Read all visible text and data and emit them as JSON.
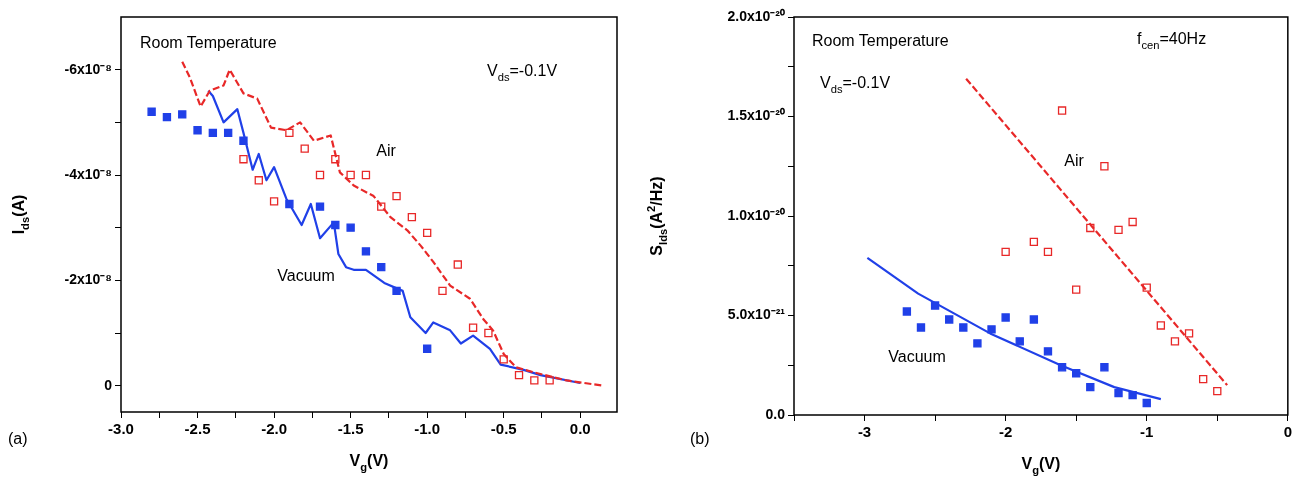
{
  "chart_data": [
    {
      "type": "scatter",
      "xlabel": "V$_{g}$(V)",
      "ylabel": "I$_{ds}$(A)",
      "xlim": [
        -3.0,
        0.24
      ],
      "ylim": [
        5e-09,
        -7e-08
      ],
      "xticks": [
        {
          "value": -3,
          "label": "-3.0"
        },
        {
          "value": -2.75,
          "label": null
        },
        {
          "value": -2.5,
          "label": "-2.5"
        },
        {
          "value": -2.25,
          "label": null
        },
        {
          "value": -2,
          "label": "-2.0"
        },
        {
          "value": -1.75,
          "label": null
        },
        {
          "value": -1.5,
          "label": "-1.5"
        },
        {
          "value": -1.25,
          "label": null
        },
        {
          "value": -1,
          "label": "-1.0"
        },
        {
          "value": -0.75,
          "label": null
        },
        {
          "value": -0.5,
          "label": "-0.5"
        },
        {
          "value": -0.25,
          "label": null
        },
        {
          "value": 0,
          "label": "0.0"
        }
      ],
      "yticks": [
        {
          "value": -6e-08,
          "label": "-6x10⁻⁸"
        },
        {
          "value": -5e-08,
          "label": null
        },
        {
          "value": -4e-08,
          "label": "-4x10⁻⁸"
        },
        {
          "value": -3e-08,
          "label": null
        },
        {
          "value": -2e-08,
          "label": "-2x10⁻⁸"
        },
        {
          "value": -1e-08,
          "label": null
        },
        0
      ],
      "grid": false,
      "legend": false,
      "annotations": [
        "Room Temperature",
        "V$_{ds}$=-0.1V",
        "Air",
        "Vacuum",
        "(a)"
      ],
      "series": [
        {
          "type": "scatter",
          "marker": "square",
          "color": "#e82828",
          "x": [
            -2.2,
            -2.1,
            -2.0,
            -1.9,
            -1.8,
            -1.7,
            -1.6,
            -1.5,
            -1.4,
            -1.3,
            -1.2,
            -1.1,
            -1.0,
            -0.9,
            -0.8,
            -0.7,
            -0.6,
            -0.5,
            -0.4,
            -0.3,
            -0.2
          ],
          "values": [
            -4.3e-08,
            -3.9e-08,
            -3.5e-08,
            -4.8e-08,
            -4.5e-08,
            -4e-08,
            -4.3e-08,
            -4e-08,
            -4e-08,
            -3.4e-08,
            -3.6e-08,
            -3.2e-08,
            -2.9e-08,
            -1.8e-08,
            -2.3e-08,
            -1.1e-08,
            -1e-08,
            -5e-09,
            -2e-09,
            -1e-09,
            -1e-09
          ]
        },
        {
          "type": "scatter",
          "marker": "square",
          "color": "#2040e8",
          "x": [
            -2.8,
            -2.7,
            -2.6,
            -2.5,
            -2.4,
            -2.3,
            -2.2,
            -1.9,
            -1.7,
            -1.6,
            -1.5,
            -1.4,
            -1.3,
            -1.2,
            -1.0
          ],
          "values": [
            -5.2e-08,
            -5.1e-08,
            -5.15e-08,
            -4.85e-08,
            -4.8e-08,
            -4.8e-08,
            -4.65e-08,
            -3.45e-08,
            -3.4e-08,
            -3.05e-08,
            -3e-08,
            -2.55e-08,
            -2.25e-08,
            -1.8e-08,
            -7e-09
          ]
        },
        {
          "type": "line",
          "marker": "none",
          "line_style": "dashed",
          "color": "#e82828",
          "x": [
            -2.6,
            -2.55,
            -2.48,
            -2.42,
            -2.33,
            -2.29,
            -2.2,
            -2.11,
            -2.02,
            -1.92,
            -1.83,
            -1.74,
            -1.63,
            -1.57,
            -1.48,
            -1.35,
            -1.24,
            -1.13,
            -1.04,
            -0.96,
            -0.85,
            -0.72,
            -0.63,
            -0.57,
            -0.5,
            -0.42,
            -0.3,
            -0.09,
            0.15
          ],
          "values": [
            -6.15e-08,
            -5.85e-08,
            -5.3e-08,
            -5.6e-08,
            -5.7e-08,
            -6e-08,
            -5.55e-08,
            -5.45e-08,
            -4.9e-08,
            -4.85e-08,
            -5e-08,
            -4.65e-08,
            -4.75e-08,
            -4.05e-08,
            -3.8e-08,
            -3.6e-08,
            -3.2e-08,
            -2.95e-08,
            -2.65e-08,
            -2.35e-08,
            -1.9e-08,
            -1.65e-08,
            -1.25e-08,
            -1.05e-08,
            -6e-09,
            -3.5e-09,
            -2.5e-09,
            -1e-09,
            0
          ]
        },
        {
          "type": "line",
          "marker": "none",
          "line_style": "solid",
          "color": "#2040e8",
          "x": [
            -2.43,
            -2.4,
            -2.33,
            -2.24,
            -2.2,
            -2.14,
            -2.1,
            -2.05,
            -2.0,
            -1.92,
            -1.82,
            -1.76,
            -1.7,
            -1.61,
            -1.58,
            -1.53,
            -1.48,
            -1.4,
            -1.28,
            -1.16,
            -1.11,
            -1.01,
            -0.96,
            -0.85,
            -0.78,
            -0.7,
            -0.59,
            -0.52,
            -0.37,
            -0.26,
            0.0
          ],
          "values": [
            -5.6e-08,
            -5.5e-08,
            -5e-08,
            -5.25e-08,
            -4.8e-08,
            -4.1e-08,
            -4.4e-08,
            -3.9e-08,
            -4.15e-08,
            -3.55e-08,
            -3.05e-08,
            -3.45e-08,
            -2.8e-08,
            -3.1e-08,
            -2.5e-08,
            -2.25e-08,
            -2.2e-08,
            -2.2e-08,
            -1.95e-08,
            -1.8e-08,
            -1.3e-08,
            -1e-08,
            -1.2e-08,
            -1.05e-08,
            -8e-09,
            -9.5e-09,
            -7e-09,
            -4e-09,
            -3e-09,
            -2e-09,
            -5e-10
          ]
        }
      ]
    },
    {
      "type": "scatter",
      "xlabel": "V$_{g}$(V)",
      "ylabel": "S$_{Ids}$(A$^{2}$/Hz)",
      "xlim": [
        -3.5,
        0
      ],
      "ylim": [
        0,
        2e-20
      ],
      "xticks": [
        {
          "value": -3.5,
          "label": null
        },
        -3,
        {
          "value": -2.5,
          "label": null
        },
        -2,
        {
          "value": -1.5,
          "label": null
        },
        -1,
        {
          "value": -0.5,
          "label": null
        },
        0
      ],
      "yticks": [
        {
          "value": 0,
          "label": "0.0"
        },
        {
          "value": 2.5e-21,
          "label": null
        },
        {
          "value": 5e-21,
          "label": "5.0x10⁻²¹"
        },
        {
          "value": 7.5e-21,
          "label": null
        },
        {
          "value": 1e-20,
          "label": "1.0x10⁻²⁰"
        },
        {
          "value": 1.25e-20,
          "label": null
        },
        {
          "value": 1.5e-20,
          "label": "1.5x10⁻²⁰"
        },
        {
          "value": 1.75e-20,
          "label": null
        },
        {
          "value": 2e-20,
          "label": "2.0x10⁻²⁰"
        }
      ],
      "grid": false,
      "legend": false,
      "annotations": [
        "Room Temperature",
        "f$_{cen}$=40Hz",
        "V$_{ds}$=-0.1V",
        "Air",
        "Vacuum",
        "(b)"
      ],
      "series": [
        {
          "type": "scatter",
          "marker": "square",
          "color": "#e82828",
          "x": [
            -2.0,
            -1.8,
            -1.7,
            -1.6,
            -1.5,
            -1.4,
            -1.3,
            -1.2,
            -1.1,
            -1.0,
            -0.9,
            -0.8,
            -0.7,
            -0.6,
            -0.5
          ],
          "values": [
            8.2e-21,
            8.7e-21,
            8.2e-21,
            1.53e-20,
            6.3e-21,
            9.4e-21,
            1.25e-20,
            9.3e-21,
            9.7e-21,
            6.4e-21,
            4.5e-21,
            3.7e-21,
            4.1e-21,
            1.8e-21,
            1.2e-21
          ]
        },
        {
          "type": "scatter",
          "marker": "square",
          "color": "#2040e8",
          "x": [
            -2.7,
            -2.6,
            -2.5,
            -2.4,
            -2.3,
            -2.2,
            -2.1,
            -2.0,
            -1.9,
            -1.8,
            -1.7,
            -1.6,
            -1.5,
            -1.4,
            -1.3,
            -1.2,
            -1.1,
            -1.0
          ],
          "values": [
            5.2e-21,
            4.4e-21,
            5.5e-21,
            4.8e-21,
            4.4e-21,
            3.6e-21,
            4.3e-21,
            4.9e-21,
            3.7e-21,
            4.8e-21,
            3.2e-21,
            2.4e-21,
            2.1e-21,
            1.4e-21,
            2.4e-21,
            1.1e-21,
            1e-21,
            6e-22
          ]
        },
        {
          "type": "line",
          "marker": "none",
          "line_style": "dashed",
          "color": "#e82828",
          "x": [
            -2.28,
            -0.43
          ],
          "values": [
            1.69e-20,
            1.5e-21
          ]
        },
        {
          "type": "line",
          "marker": "none",
          "line_style": "solid",
          "color": "#2040e8",
          "x": [
            -2.98,
            -2.62,
            -2.11,
            -1.61,
            -1.23,
            -0.9
          ],
          "values": [
            7.9e-21,
            6.1e-21,
            4.1e-21,
            2.5e-21,
            1.4e-21,
            8e-22
          ]
        }
      ]
    }
  ]
}
